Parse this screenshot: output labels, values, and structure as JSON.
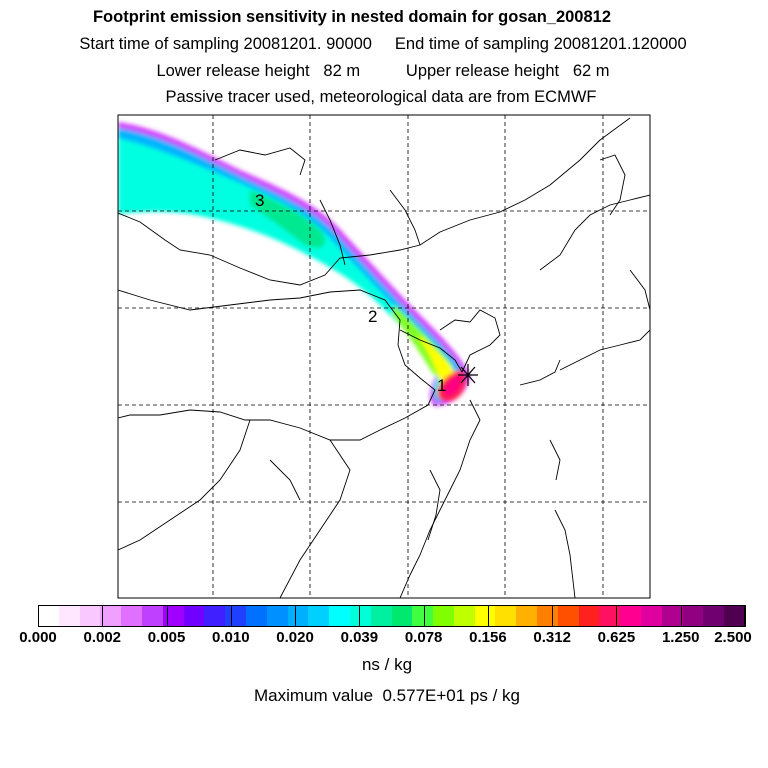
{
  "title": {
    "line1": "Footprint emission sensitivity in nested domain for gosan_200812",
    "line2": "Start time of sampling 20081201. 90000     End time of sampling 20081201.120000",
    "line3": "Lower release height   82 m          Upper release height   62 m",
    "line4": "Passive tracer used, meteorological data are from ECMWF"
  },
  "map": {
    "markers": [
      {
        "label": "1"
      },
      {
        "label": "2"
      },
      {
        "label": "3"
      }
    ],
    "receptor_symbol": "*",
    "plume_colors": [
      "#d040ff",
      "#00b4ff",
      "#00ffe0",
      "#00e890",
      "#80ff20",
      "#ffff00",
      "#ff2040",
      "#ff0080"
    ]
  },
  "colorbar": {
    "colors": [
      "#ffffff",
      "#ffe8ff",
      "#f8c8ff",
      "#f0a0ff",
      "#e070ff",
      "#c040ff",
      "#a000ff",
      "#7000ff",
      "#4020ff",
      "#2040ff",
      "#0070ff",
      "#0090ff",
      "#00b0ff",
      "#00d0ff",
      "#00ffff",
      "#00ffd8",
      "#00f0a0",
      "#00e870",
      "#40ff40",
      "#80ff00",
      "#c0ff00",
      "#ffff00",
      "#ffe000",
      "#ffb000",
      "#ff8000",
      "#ff5000",
      "#ff2020",
      "#ff1060",
      "#ff0090",
      "#e000a0",
      "#b00090",
      "#900080",
      "#700070",
      "#500050"
    ],
    "tick_labels": [
      "0.000",
      "0.002",
      "0.005",
      "0.010",
      "0.020",
      "0.039",
      "0.078",
      "0.156",
      "0.312",
      "0.625",
      "1.250",
      "2.500"
    ],
    "units": "ns / kg"
  },
  "max_value_text": "Maximum value  0.577E+01 ps / kg"
}
